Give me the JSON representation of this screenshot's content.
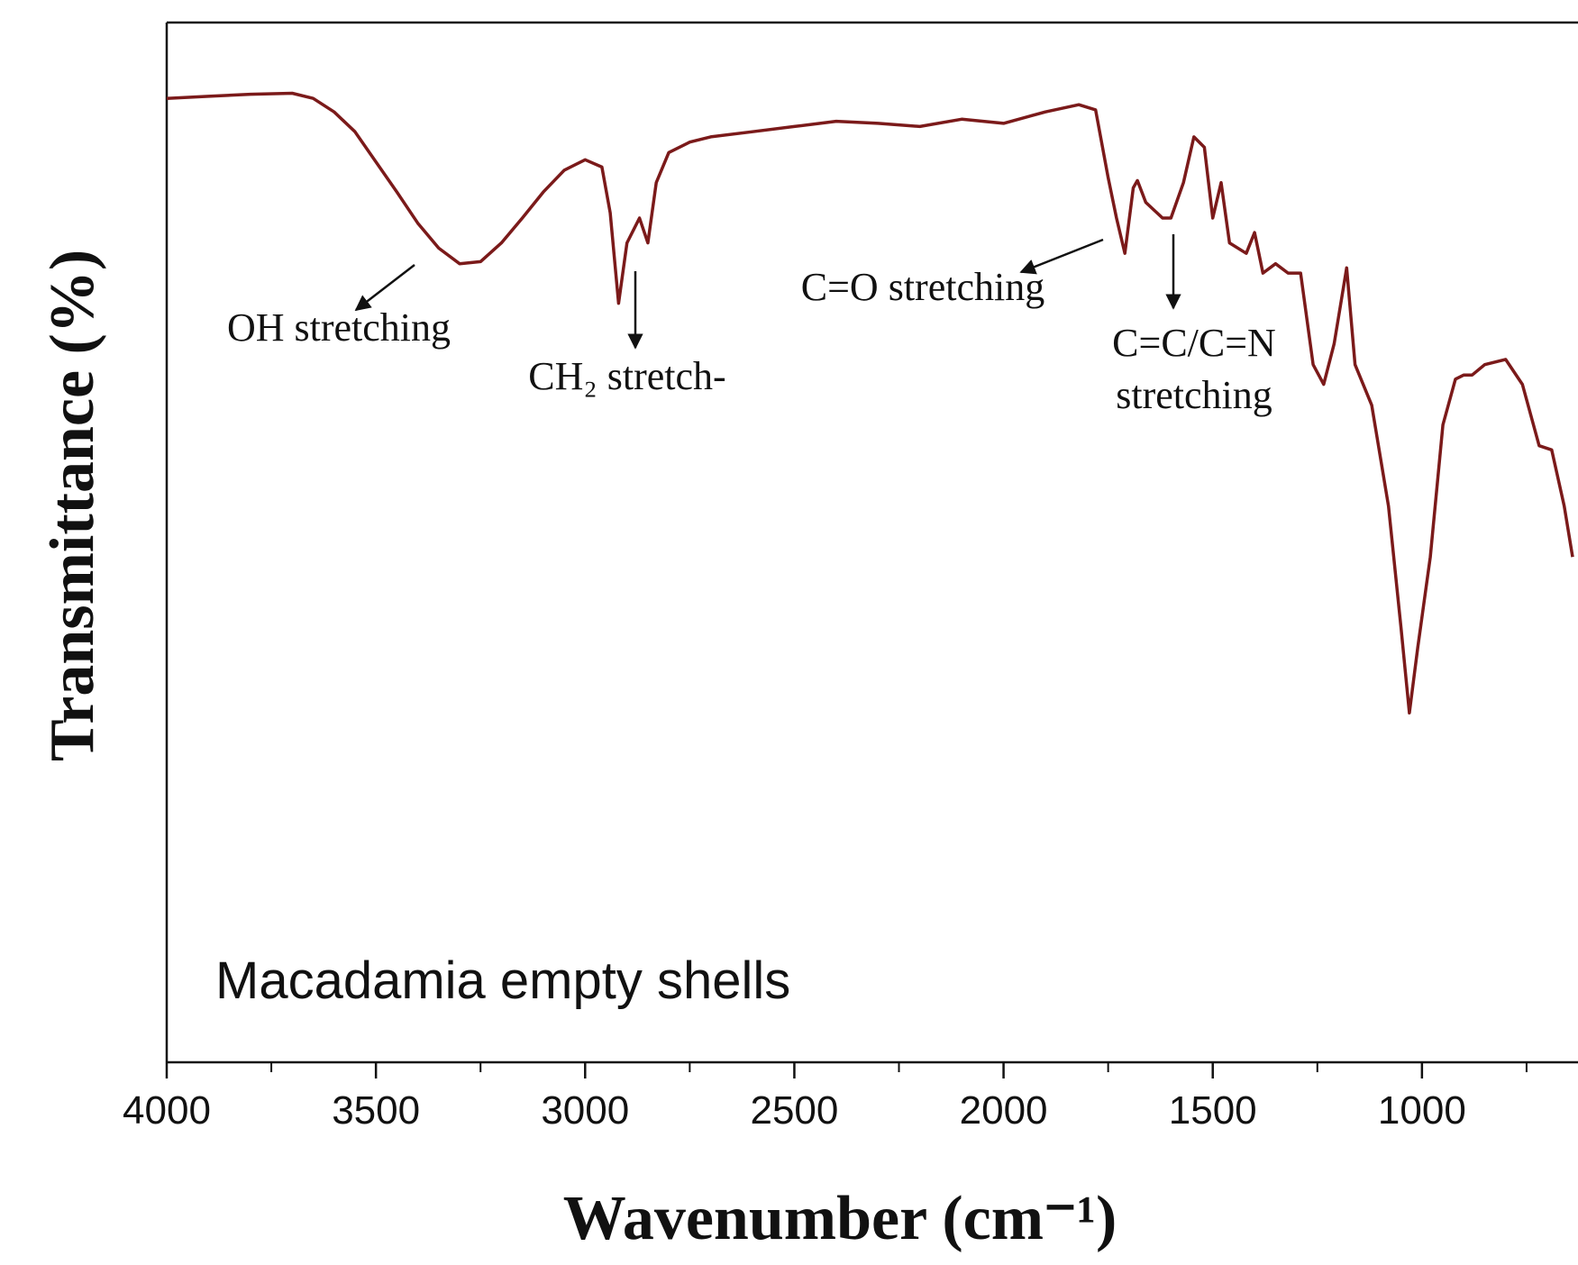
{
  "chart_data": {
    "type": "line",
    "x_label": "Wavenumber (cm⁻¹)",
    "y_label": "Transmittance (%)",
    "inset_label": "Macadamia empty shells",
    "annotations": [
      {
        "lines": [
          "OH stretching"
        ]
      },
      {
        "lines": [
          "CH₂ stretch-"
        ]
      },
      {
        "lines": [
          "C=O stretching"
        ]
      },
      {
        "lines": [
          "C=C/C=N",
          "stretching"
        ]
      }
    ],
    "xlim": [
      4000,
      640
    ],
    "ylim": [
      0,
      100
    ],
    "xticks": [
      4000,
      3500,
      3000,
      2500,
      2000,
      1500,
      1000
    ],
    "xminorticks": [
      3750,
      3250,
      2750,
      2250,
      1750,
      1250,
      750
    ],
    "x": [
      4000,
      3900,
      3800,
      3700,
      3650,
      3600,
      3550,
      3500,
      3450,
      3400,
      3350,
      3300,
      3250,
      3200,
      3150,
      3100,
      3050,
      3000,
      2960,
      2940,
      2920,
      2900,
      2870,
      2850,
      2830,
      2800,
      2750,
      2700,
      2600,
      2500,
      2400,
      2300,
      2200,
      2100,
      2000,
      1900,
      1820,
      1780,
      1750,
      1730,
      1710,
      1690,
      1680,
      1660,
      1620,
      1600,
      1570,
      1545,
      1520,
      1500,
      1480,
      1460,
      1420,
      1400,
      1380,
      1350,
      1320,
      1290,
      1260,
      1235,
      1210,
      1180,
      1160,
      1120,
      1080,
      1050,
      1030,
      1010,
      980,
      950,
      920,
      900,
      880,
      850,
      800,
      760,
      720,
      690,
      660,
      640
    ],
    "series": [
      {
        "color": "#7b1a1a",
        "values": [
          92.7,
          92.9,
          93.1,
          93.2,
          92.7,
          91.4,
          89.5,
          86.6,
          83.7,
          80.7,
          78.3,
          76.8,
          77.0,
          78.8,
          81.2,
          83.7,
          85.8,
          86.8,
          86.1,
          81.7,
          73.0,
          78.8,
          81.2,
          78.8,
          84.6,
          87.5,
          88.5,
          89.0,
          89.5,
          90.0,
          90.5,
          90.3,
          90.0,
          90.7,
          90.3,
          91.4,
          92.1,
          91.6,
          85.1,
          81.2,
          77.8,
          84.1,
          84.8,
          82.7,
          81.2,
          81.2,
          84.6,
          89.0,
          88.0,
          81.2,
          84.6,
          78.8,
          77.8,
          79.8,
          75.9,
          76.8,
          75.9,
          75.9,
          67.1,
          65.2,
          69.1,
          76.4,
          67.1,
          63.2,
          53.5,
          41.8,
          33.6,
          39.9,
          48.6,
          61.3,
          65.7,
          66.1,
          66.1,
          67.1,
          67.6,
          65.2,
          59.3,
          58.9,
          53.5,
          48.6
        ]
      }
    ]
  }
}
